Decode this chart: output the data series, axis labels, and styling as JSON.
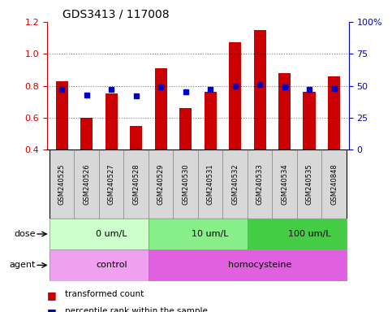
{
  "title": "GDS3413 / 117008",
  "samples": [
    "GSM240525",
    "GSM240526",
    "GSM240527",
    "GSM240528",
    "GSM240529",
    "GSM240530",
    "GSM240531",
    "GSM240532",
    "GSM240533",
    "GSM240534",
    "GSM240535",
    "GSM240848"
  ],
  "transformed_count": [
    0.83,
    0.6,
    0.75,
    0.55,
    0.91,
    0.66,
    0.76,
    1.07,
    1.15,
    0.88,
    0.76,
    0.86
  ],
  "percentile_rank_pct": [
    47,
    43,
    47,
    42,
    49,
    45,
    47,
    50,
    51,
    49,
    47,
    48
  ],
  "ylim_left": [
    0.4,
    1.2
  ],
  "ylim_right": [
    0,
    100
  ],
  "yticks_left": [
    0.4,
    0.6,
    0.8,
    1.0,
    1.2
  ],
  "yticks_right": [
    0,
    25,
    50,
    75,
    100
  ],
  "ytick_labels_right": [
    "0",
    "25",
    "50",
    "75",
    "100%"
  ],
  "bar_color": "#cc0000",
  "dot_color": "#0000cc",
  "bar_bottom": 0.4,
  "dose_groups": [
    {
      "label": "0 um/L",
      "start": 0,
      "end": 4,
      "color": "#ccffcc"
    },
    {
      "label": "10 um/L",
      "start": 4,
      "end": 8,
      "color": "#88ee88"
    },
    {
      "label": "100 um/L",
      "start": 8,
      "end": 12,
      "color": "#44cc44"
    }
  ],
  "agent_groups": [
    {
      "label": "control",
      "start": 0,
      "end": 4,
      "color": "#f0a0f0"
    },
    {
      "label": "homocysteine",
      "start": 4,
      "end": 12,
      "color": "#e060e0"
    }
  ],
  "dose_label": "dose",
  "agent_label": "agent",
  "legend_items": [
    {
      "color": "#cc0000",
      "label": "transformed count"
    },
    {
      "color": "#0000cc",
      "label": "percentile rank within the sample"
    }
  ],
  "axis_label_color_left": "#cc0000",
  "axis_label_color_right": "#0000cc",
  "sample_box_color": "#d8d8d8",
  "sample_box_edge": "#888888"
}
